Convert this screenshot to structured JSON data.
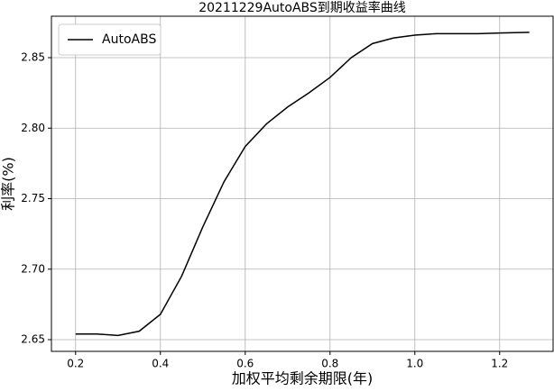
{
  "chart_data": {
    "type": "line",
    "title": "20211229AutoABS到期收益率曲线",
    "x_label": "加权平均剩余期限(年)",
    "y_label": "利率(%)",
    "x": [
      0.2,
      0.25,
      0.3,
      0.35,
      0.4,
      0.45,
      0.5,
      0.55,
      0.6,
      0.65,
      0.7,
      0.75,
      0.8,
      0.85,
      0.9,
      0.95,
      1.0,
      1.05,
      1.1,
      1.15,
      1.2,
      1.27
    ],
    "series": [
      {
        "name": "AutoABS",
        "color": "#000000",
        "values": [
          2.654,
          2.654,
          2.653,
          2.656,
          2.668,
          2.695,
          2.73,
          2.762,
          2.787,
          2.803,
          2.815,
          2.825,
          2.836,
          2.85,
          2.86,
          2.864,
          2.866,
          2.867,
          2.867,
          2.867,
          2.8675,
          2.868
        ]
      }
    ],
    "xlim": [
      0.143,
      1.326
    ],
    "ylim": [
      2.6417,
      2.8794
    ],
    "xticks": [
      0.2,
      0.4,
      0.6,
      0.8,
      {
        "value": 1,
        "label": "1.0"
      },
      1.2
    ],
    "yticks": [
      2.65,
      {
        "value": 2.7,
        "label": "2.70"
      },
      2.75,
      {
        "value": 2.8,
        "label": "2.80"
      },
      2.85
    ],
    "grid": true,
    "legend": "upper-left"
  }
}
